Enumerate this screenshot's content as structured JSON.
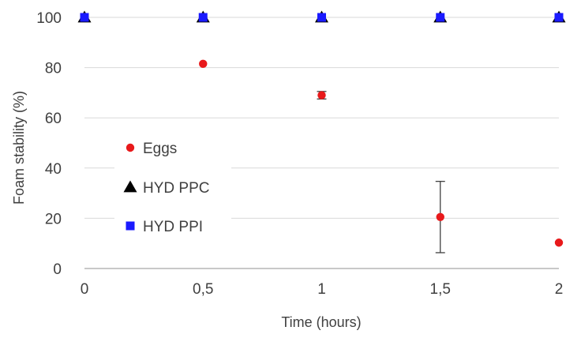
{
  "chart_data": {
    "type": "scatter",
    "xlabel": "Time (hours)",
    "ylabel": "Foam stability (%)",
    "xlim": [
      0,
      2
    ],
    "ylim": [
      0,
      100
    ],
    "x_ticks": [
      "0",
      "0,5",
      "1",
      "1,5",
      "2"
    ],
    "y_ticks": [
      "0",
      "20",
      "40",
      "60",
      "80",
      "100"
    ],
    "grid": "horizontal",
    "legend_position": "left-center",
    "series": [
      {
        "name": "Eggs",
        "marker": "circle",
        "color": "#e8191b",
        "x": [
          0,
          0.5,
          1,
          1.5,
          2
        ],
        "y": [
          100,
          81.5,
          69,
          20.5,
          10.3
        ],
        "error": [
          0,
          0,
          1.5,
          14.2,
          0
        ]
      },
      {
        "name": "HYD PPC",
        "marker": "triangle",
        "color": "#000000",
        "x": [
          0,
          0.5,
          1,
          1.5,
          2
        ],
        "y": [
          100,
          100,
          100,
          100,
          100
        ]
      },
      {
        "name": "HYD PPI",
        "marker": "square",
        "color": "#1a1aff",
        "x": [
          0,
          0.5,
          1,
          1.5,
          2
        ],
        "y": [
          100,
          100,
          100,
          100,
          100
        ]
      }
    ]
  }
}
